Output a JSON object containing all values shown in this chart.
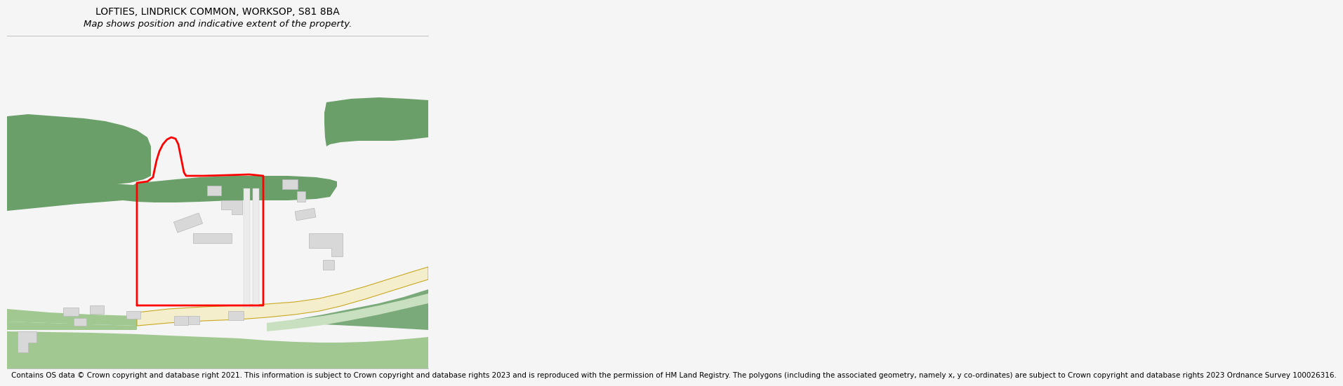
{
  "title_line1": "LOFTIES, LINDRICK COMMON, WORKSOP, S81 8BA",
  "title_line2": "Map shows position and indicative extent of the property.",
  "footer_text": "Contains OS data © Crown copyright and database right 2021. This information is subject to Crown copyright and database rights 2023 and is reproduced with the permission of HM Land Registry. The polygons (including the associated geometry, namely x, y co-ordinates) are subject to Crown copyright and database rights 2023 Ordnance Survey 100026316.",
  "bg_color": "#f5f5f5",
  "map_bg": "#ffffff",
  "green_dark": "#6a9f6a",
  "green_medium": "#7aaa7a",
  "green_light": "#a0c890",
  "green_pale": "#c8e0c0",
  "road_fill": "#f5eecc",
  "road_edge": "#c8a820",
  "building_fill": "#d8d8d8",
  "building_edge": "#b8b8b8",
  "path_fill": "#ebebeb",
  "path_edge": "#cccccc",
  "red": "#ff0000",
  "red_lw": 2.0,
  "title_fs": 10,
  "subtitle_fs": 9.5,
  "footer_fs": 7.5
}
